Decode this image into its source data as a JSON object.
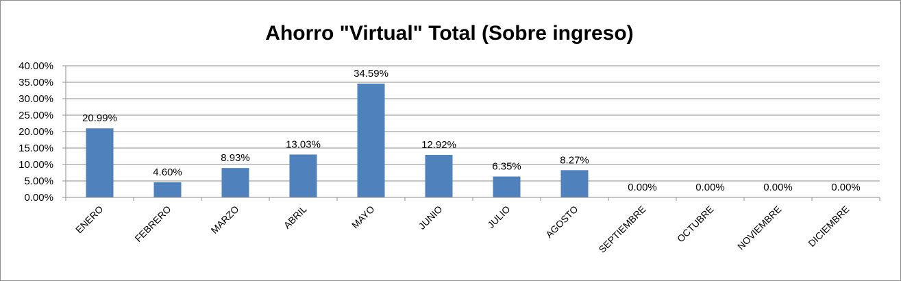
{
  "chart_data": {
    "type": "bar",
    "title": "Ahorro \"Virtual\" Total (Sobre ingreso)",
    "xlabel": "",
    "ylabel": "",
    "ylim": [
      0,
      40
    ],
    "yticks": [
      "0.00%",
      "5.00%",
      "10.00%",
      "15.00%",
      "20.00%",
      "25.00%",
      "30.00%",
      "35.00%",
      "40.00%"
    ],
    "grid": true,
    "legend": "none",
    "bar_color": "#4f81bd",
    "categories": [
      "ENERO",
      "FEBRERO",
      "MARZO",
      "ABRIL",
      "MAYO",
      "JUNIO",
      "JULIO",
      "AGOSTO",
      "SEPTIEMBRE",
      "OCTUBRE",
      "NOVIEMBRE",
      "DICIEMBRE"
    ],
    "values": [
      20.99,
      4.6,
      8.93,
      13.03,
      34.59,
      12.92,
      6.35,
      8.27,
      0.0,
      0.0,
      0.0,
      0.0
    ],
    "data_labels": [
      "20.99%",
      "4.60%",
      "8.93%",
      "13.03%",
      "34.59%",
      "12.92%",
      "6.35%",
      "8.27%",
      "0.00%",
      "0.00%",
      "0.00%",
      "0.00%"
    ]
  }
}
